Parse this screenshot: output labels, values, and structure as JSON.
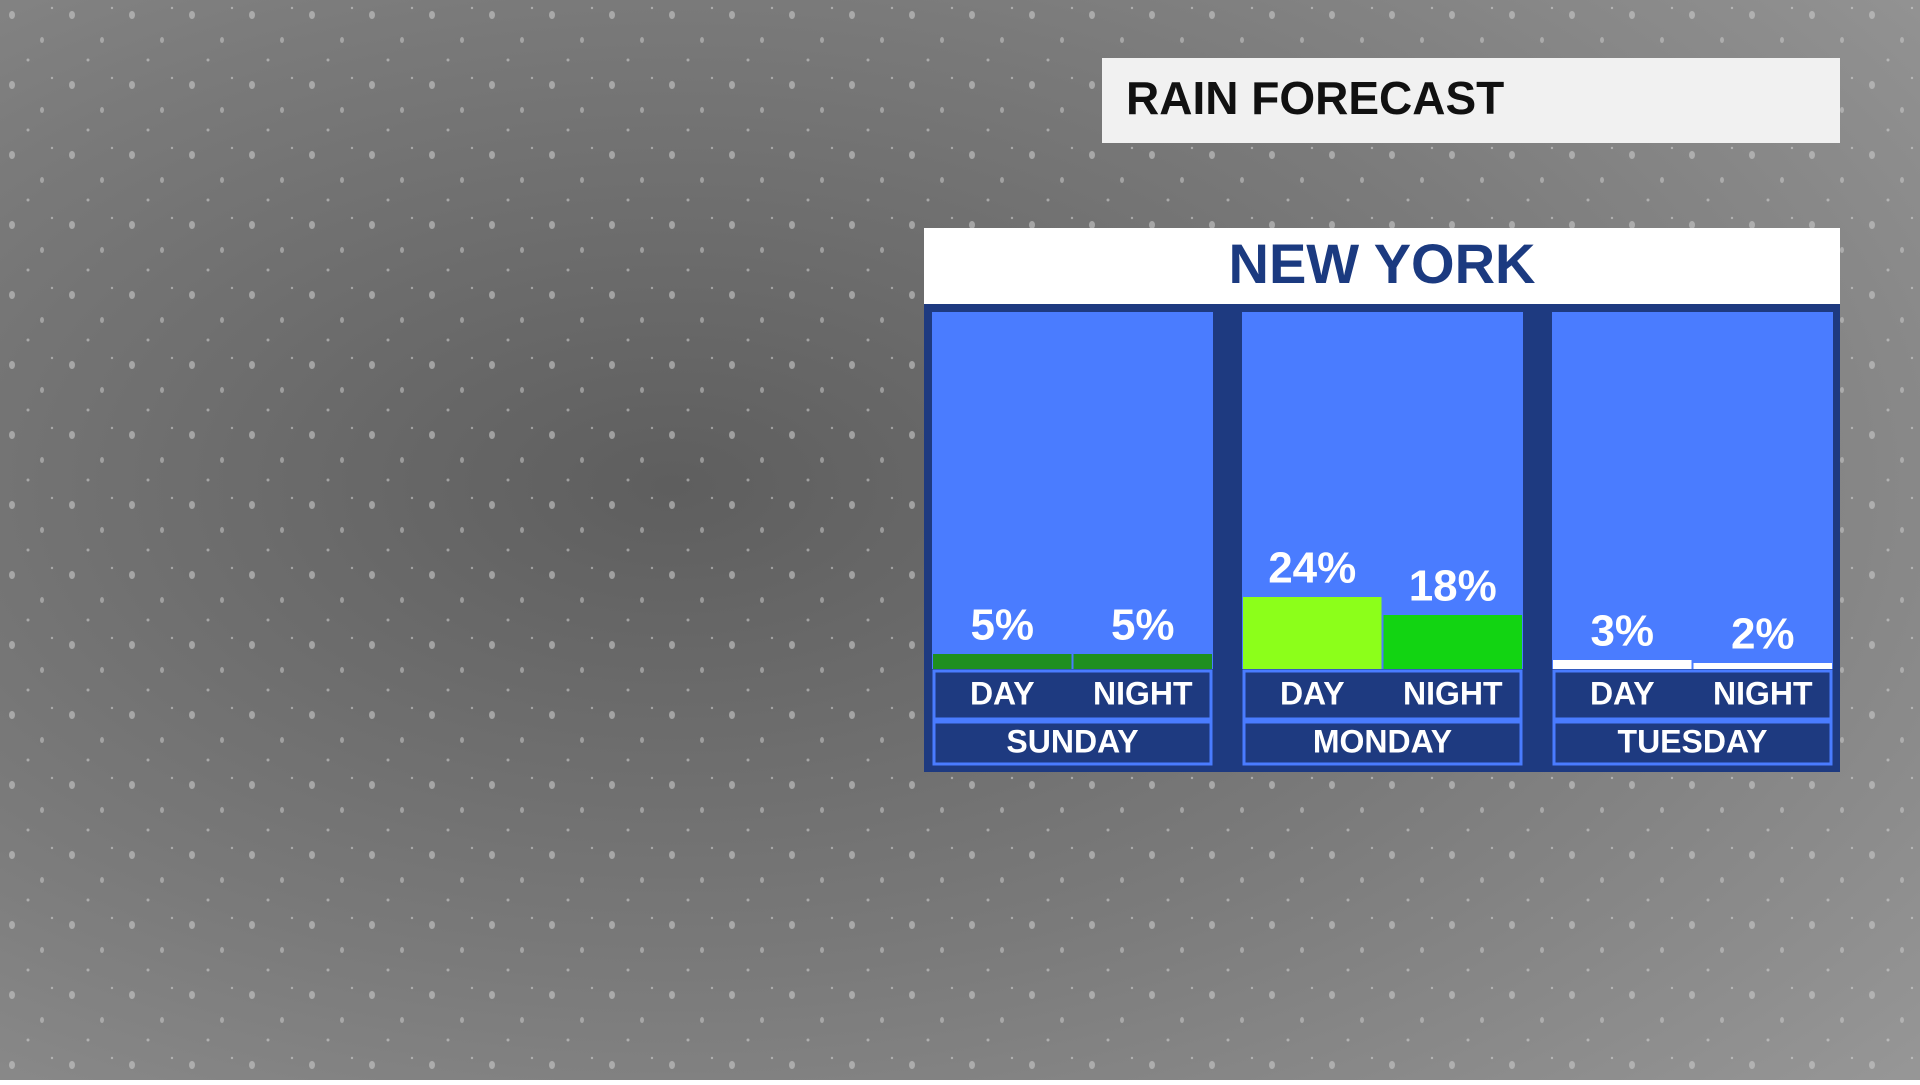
{
  "chart_data": {
    "type": "bar",
    "title": "RAIN FORECAST",
    "subtitle": "NEW YORK",
    "categories": [
      "SUNDAY",
      "MONDAY",
      "TUESDAY"
    ],
    "series": [
      {
        "name": "DAY",
        "colors": [
          "#1f8f1f",
          "#8cff1a",
          "#ffffff"
        ],
        "values": [
          5,
          24,
          3
        ],
        "value_labels": [
          "5%",
          "24%",
          "3%"
        ]
      },
      {
        "name": "NIGHT",
        "colors": [
          "#1f8f1f",
          "#12d412",
          "#ffffff"
        ],
        "values": [
          5,
          18,
          2
        ],
        "value_labels": [
          "5%",
          "18%",
          "2%"
        ]
      }
    ],
    "ylim": [
      0,
      100
    ]
  }
}
